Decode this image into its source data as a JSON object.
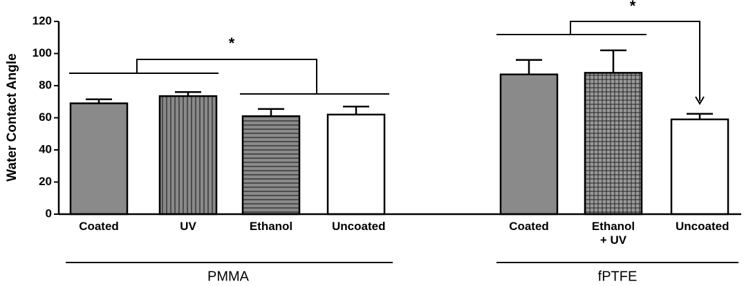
{
  "chart_data": {
    "type": "bar",
    "y_label": "Water Contact Angle",
    "categories": [
      "Coated",
      "UV",
      "Ethanol",
      "Uncoated",
      "Coated",
      "Ethanol + UV",
      "Uncoated"
    ],
    "values": [
      69,
      73.5,
      61,
      62,
      87,
      88,
      59
    ],
    "errors": [
      2.5,
      2.5,
      4.5,
      5,
      9,
      14,
      3.5
    ],
    "fills": [
      "solid",
      "vertical",
      "horizontal",
      "white",
      "solid",
      "grid",
      "white"
    ],
    "color": "#8a8a8a",
    "groups": [
      "PMMA",
      "fPTFE"
    ],
    "annotations": [
      "*",
      "*"
    ],
    "ylim": [
      0,
      120
    ],
    "yticks": [
      0,
      20,
      40,
      60,
      80,
      100,
      120
    ]
  }
}
